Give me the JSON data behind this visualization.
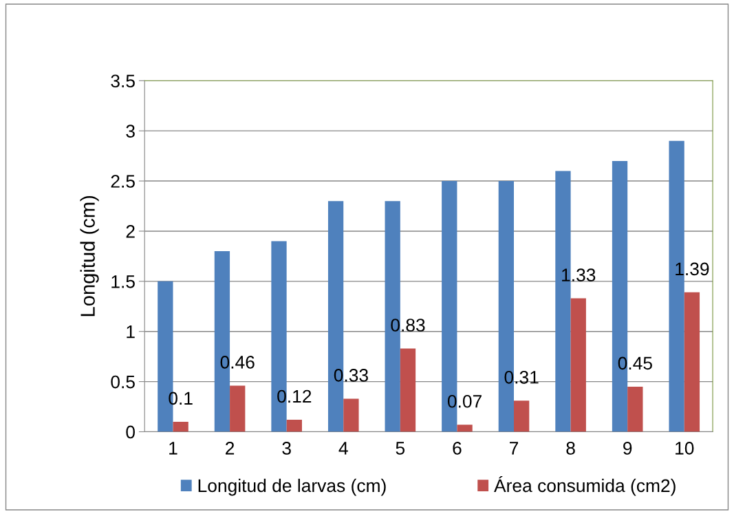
{
  "chart_data": {
    "type": "bar",
    "ylabel": "Longitud (cm)",
    "categories": [
      "1",
      "2",
      "3",
      "4",
      "5",
      "6",
      "7",
      "8",
      "9",
      "10"
    ],
    "series": [
      {
        "name": "Longitud de larvas (cm)",
        "color": "#4f81bd",
        "values": [
          1.5,
          1.8,
          1.9,
          2.3,
          2.3,
          2.5,
          2.5,
          2.6,
          2.7,
          2.9
        ]
      },
      {
        "name": "Área consumida (cm2)",
        "color": "#c0504d",
        "values": [
          0.1,
          0.46,
          0.12,
          0.33,
          0.83,
          0.07,
          0.31,
          1.33,
          0.45,
          1.39
        ],
        "value_labels": [
          "0.1",
          "0.46",
          "0.12",
          "0.33",
          "0.83",
          "0.07",
          "0.31",
          "1.33",
          "0.45",
          "1.39"
        ]
      }
    ],
    "ylim": [
      0,
      3.5
    ],
    "yticks": [
      0,
      0.5,
      1,
      1.5,
      2,
      2.5,
      3,
      3.5
    ],
    "grid": "y",
    "legend": "bottom"
  }
}
